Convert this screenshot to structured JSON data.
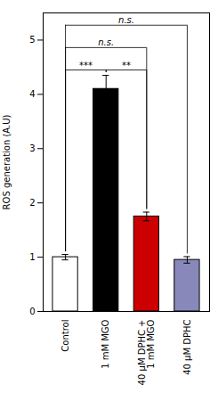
{
  "chart_data": {
    "type": "bar",
    "categories": [
      "Control",
      "1 mM MGO",
      "40 μM DPHC +\n1 mM MGO",
      "40 μM DPHC"
    ],
    "values": [
      1.0,
      4.1,
      1.75,
      0.95
    ],
    "errors": [
      0.05,
      0.25,
      0.08,
      0.06
    ],
    "colors": [
      "white",
      "black",
      "#cc0000",
      "#8888bb"
    ],
    "ylabel": "ROS generation (A.U)",
    "ylim": [
      0,
      5.5
    ],
    "yticks": [
      0,
      1,
      2,
      3,
      4,
      5
    ],
    "annotations": [
      {
        "text": "***",
        "from": "Control",
        "to": "1 mM MGO"
      },
      {
        "text": "**",
        "from": "1 mM MGO",
        "to": "40 μM DPHC +\n1 mM MGO"
      },
      {
        "text": "n.s.",
        "from": "Control",
        "to": "40 μM DPHC +\n1 mM MGO"
      },
      {
        "text": "n.s.",
        "from": "Control",
        "to": "40 μM DPHC"
      }
    ]
  }
}
